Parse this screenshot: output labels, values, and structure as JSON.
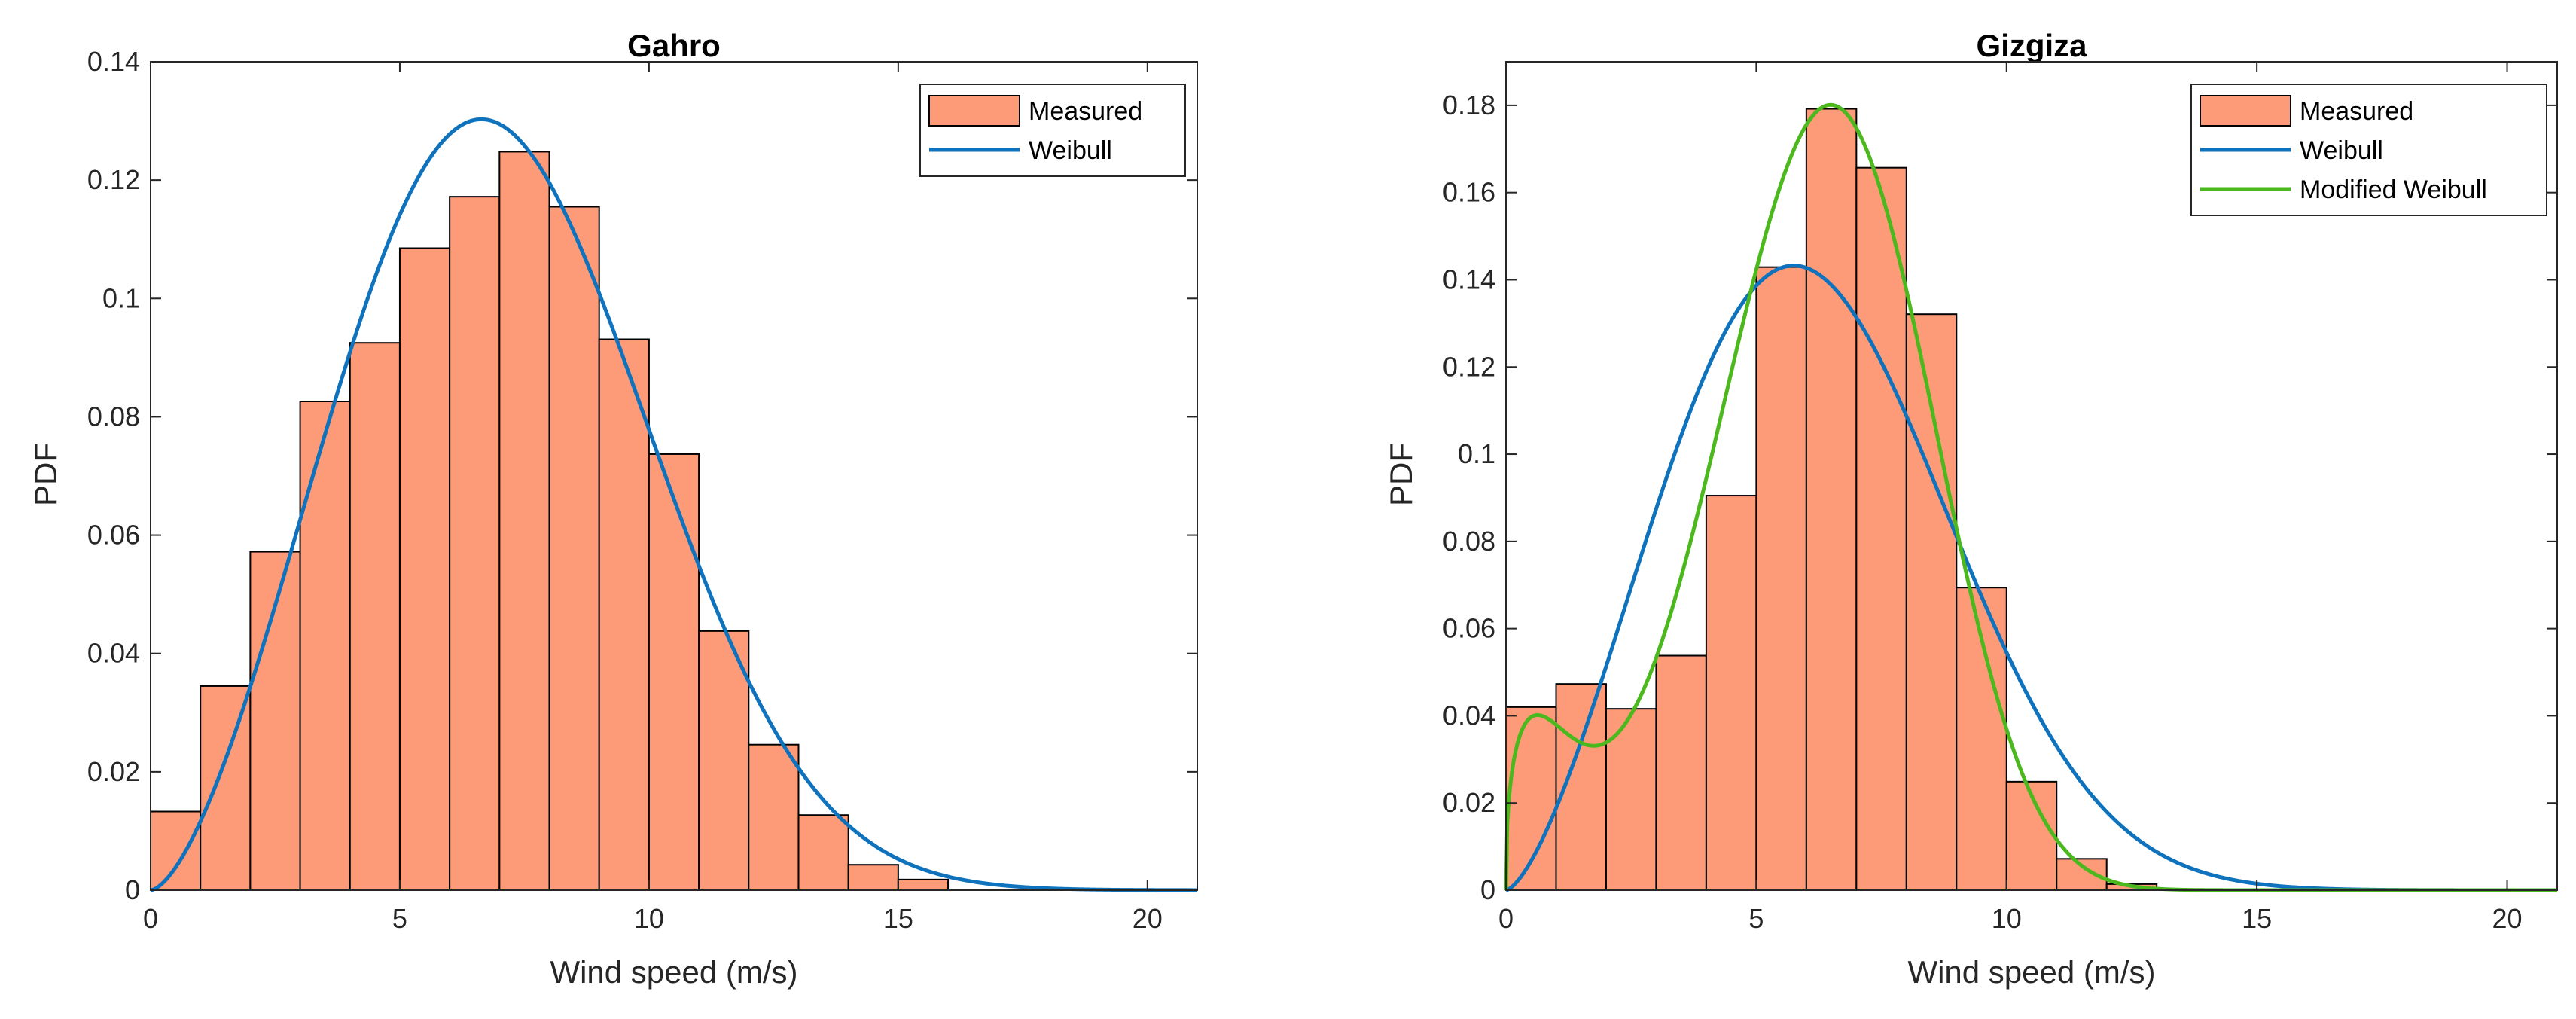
{
  "colors": {
    "bar_fill": "#fd9a78",
    "bar_edge": "#000000",
    "weibull": "#0f72bd",
    "modified_weibull": "#4bb81d",
    "axis": "#262626"
  },
  "chart_data": [
    {
      "type": "bar",
      "title": "Gahro",
      "xlabel": "Wind speed (m/s)",
      "ylabel": "PDF",
      "xlim": [
        0,
        21
      ],
      "ylim": [
        0,
        0.14
      ],
      "xticks": [
        0,
        5,
        10,
        15,
        20
      ],
      "yticks": [
        0,
        0.02,
        0.04,
        0.06,
        0.08,
        0.1,
        0.12,
        0.14
      ],
      "ytick_labels": [
        "0",
        "0.02",
        "0.04",
        "0.06",
        "0.08",
        "0.1",
        "0.12",
        "0.14"
      ],
      "legend_position": "top-right",
      "bin_width": 1,
      "bin_starts": [
        0,
        1,
        2,
        3,
        4,
        5,
        6,
        7,
        8,
        9,
        10,
        11,
        12,
        13,
        14,
        15
      ],
      "values": [
        0.0133,
        0.0345,
        0.0572,
        0.0826,
        0.0925,
        0.1085,
        0.1172,
        0.1248,
        0.1155,
        0.0931,
        0.0737,
        0.0438,
        0.0246,
        0.0127,
        0.0043,
        0.0018
      ],
      "series": [
        {
          "name": "Measured",
          "kind": "histogram"
        },
        {
          "name": "Weibull",
          "kind": "curve",
          "dist": "weibull",
          "k": 2.6,
          "c": 8.0,
          "color_key": "weibull"
        }
      ]
    },
    {
      "type": "bar",
      "title": "Gizgiza",
      "xlabel": "Wind speed (m/s)",
      "ylabel": "PDF",
      "xlim": [
        0,
        21
      ],
      "ylim": [
        0,
        0.19
      ],
      "xticks": [
        0,
        5,
        10,
        15,
        20
      ],
      "yticks": [
        0,
        0.02,
        0.04,
        0.06,
        0.08,
        0.1,
        0.12,
        0.14,
        0.16,
        0.18
      ],
      "ytick_labels": [
        "0",
        "0.02",
        "0.04",
        "0.06",
        "0.08",
        "0.1",
        "0.12",
        "0.14",
        "0.16",
        "0.18"
      ],
      "legend_position": "top-right",
      "bin_width": 1,
      "bin_starts": [
        0,
        1,
        2,
        3,
        4,
        5,
        6,
        7,
        8,
        9,
        10,
        11,
        12
      ],
      "values": [
        0.042,
        0.0473,
        0.0416,
        0.0538,
        0.0905,
        0.1429,
        0.1792,
        0.1657,
        0.1321,
        0.0694,
        0.0249,
        0.0072,
        0.0014
      ],
      "series": [
        {
          "name": "Measured",
          "kind": "histogram"
        },
        {
          "name": "Weibull",
          "kind": "curve",
          "dist": "weibull",
          "k": 2.5,
          "c": 7.05,
          "color_key": "weibull"
        },
        {
          "name": "Modified Weibull",
          "kind": "curve",
          "dist": "mixture",
          "w": 0.075,
          "k1": 1.4,
          "c1": 1.4,
          "k2": 3.6,
          "c2": 7.1,
          "color_key": "modified_weibull"
        }
      ]
    }
  ]
}
